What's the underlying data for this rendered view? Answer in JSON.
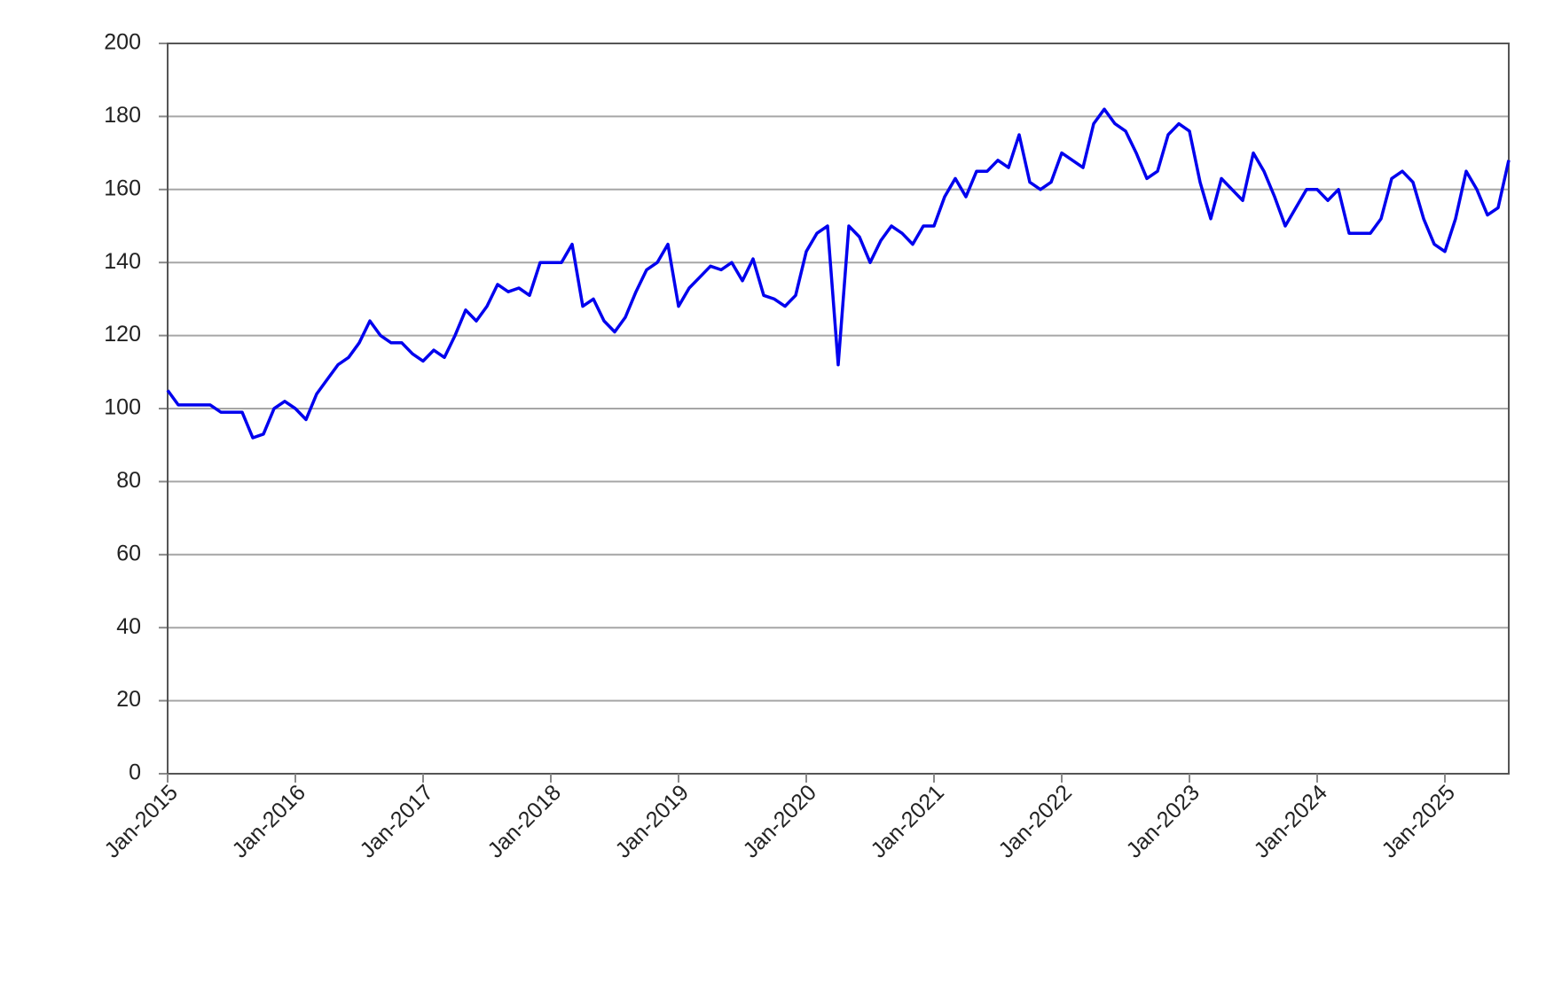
{
  "chart_data": {
    "type": "line",
    "x": [
      "2015-01",
      "2015-02",
      "2015-03",
      "2015-04",
      "2015-05",
      "2015-06",
      "2015-07",
      "2015-08",
      "2015-09",
      "2015-10",
      "2015-11",
      "2015-12",
      "2016-01",
      "2016-02",
      "2016-03",
      "2016-04",
      "2016-05",
      "2016-06",
      "2016-07",
      "2016-08",
      "2016-09",
      "2016-10",
      "2016-11",
      "2016-12",
      "2017-01",
      "2017-02",
      "2017-03",
      "2017-04",
      "2017-05",
      "2017-06",
      "2017-07",
      "2017-08",
      "2017-09",
      "2017-10",
      "2017-11",
      "2017-12",
      "2018-01",
      "2018-02",
      "2018-03",
      "2018-04",
      "2018-05",
      "2018-06",
      "2018-07",
      "2018-08",
      "2018-09",
      "2018-10",
      "2018-11",
      "2018-12",
      "2019-01",
      "2019-02",
      "2019-03",
      "2019-04",
      "2019-05",
      "2019-06",
      "2019-07",
      "2019-08",
      "2019-09",
      "2019-10",
      "2019-11",
      "2019-12",
      "2020-01",
      "2020-02",
      "2020-03",
      "2020-04",
      "2020-05",
      "2020-06",
      "2020-07",
      "2020-08",
      "2020-09",
      "2020-10",
      "2020-11",
      "2020-12",
      "2021-01",
      "2021-02",
      "2021-03",
      "2021-04",
      "2021-05",
      "2021-06",
      "2021-07",
      "2021-08",
      "2021-09",
      "2021-10",
      "2021-11",
      "2021-12",
      "2022-01",
      "2022-02",
      "2022-03",
      "2022-04",
      "2022-05",
      "2022-06",
      "2022-07",
      "2022-08",
      "2022-09",
      "2022-10",
      "2022-11",
      "2022-12",
      "2023-01",
      "2023-02",
      "2023-03",
      "2023-04",
      "2023-05",
      "2023-06",
      "2023-07",
      "2023-08",
      "2023-09",
      "2023-10",
      "2023-11",
      "2023-12",
      "2024-01",
      "2024-02",
      "2024-03",
      "2024-04",
      "2024-05",
      "2024-06",
      "2024-07",
      "2024-08",
      "2024-09",
      "2024-10",
      "2024-11",
      "2024-12",
      "2025-01",
      "2025-02",
      "2025-03",
      "2025-04",
      "2025-05",
      "2025-06",
      "2025-07"
    ],
    "series": [
      {
        "color": "#0000ee",
        "values": [
          105,
          101,
          101,
          101,
          101,
          99,
          99,
          99,
          92,
          93,
          100,
          102,
          100,
          97,
          104,
          108,
          112,
          114,
          118,
          124,
          120,
          118,
          118,
          115,
          113,
          116,
          114,
          120,
          127,
          124,
          128,
          134,
          132,
          133,
          131,
          140,
          140,
          140,
          145,
          128,
          130,
          124,
          121,
          125,
          132,
          138,
          140,
          145,
          128,
          133,
          136,
          139,
          138,
          140,
          135,
          141,
          131,
          130,
          128,
          131,
          143,
          148,
          150,
          112,
          150,
          147,
          140,
          146,
          150,
          148,
          145,
          150,
          150,
          158,
          163,
          158,
          165,
          165,
          168,
          166,
          175,
          162,
          160,
          162,
          170,
          168,
          166,
          178,
          182,
          178,
          176,
          170,
          163,
          165,
          175,
          178,
          176,
          162,
          152,
          163,
          160,
          157,
          170,
          165,
          158,
          150,
          155,
          160,
          160,
          157,
          160,
          148,
          148,
          148,
          152,
          163,
          165,
          162,
          152,
          145,
          143,
          152,
          165,
          160,
          153,
          155,
          168
        ]
      }
    ],
    "xlim": [
      "2015-01",
      "2025-07"
    ],
    "xticks": [
      {
        "value": "2015-01",
        "label": "Jan-2015"
      },
      {
        "value": "2016-01",
        "label": "Jan-2016"
      },
      {
        "value": "2017-01",
        "label": "Jan-2017"
      },
      {
        "value": "2018-01",
        "label": "Jan-2018"
      },
      {
        "value": "2019-01",
        "label": "Jan-2019"
      },
      {
        "value": "2020-01",
        "label": "Jan-2020"
      },
      {
        "value": "2021-01",
        "label": "Jan-2021"
      },
      {
        "value": "2022-01",
        "label": "Jan-2022"
      },
      {
        "value": "2023-01",
        "label": "Jan-2023"
      },
      {
        "value": "2024-01",
        "label": "Jan-2024"
      },
      {
        "value": "2025-01",
        "label": "Jan-2025"
      }
    ],
    "ylim": [
      0,
      200
    ],
    "yticks": [
      0,
      20,
      40,
      60,
      80,
      100,
      120,
      140,
      160,
      180,
      200
    ],
    "grid": true
  }
}
